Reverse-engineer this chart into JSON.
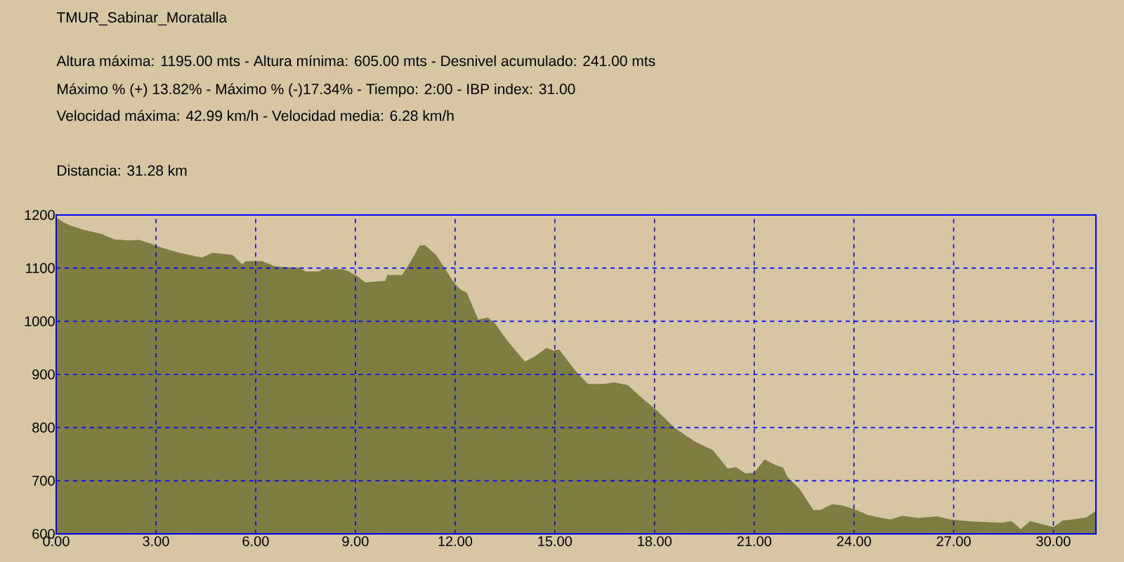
{
  "chart_data": {
    "type": "area",
    "title": "TMUR_Sabinar_Moratalla",
    "annotations": [
      "Altura máxima: 1195.00 mts - Altura mínima: 605.00 mts - Desnivel acumulado: 241.00 mts",
      "Máximo % (+) 13.82%  -  Máximo % (-)17.34%  -  Tiempo: 2:00  -   IBP index: 31.00",
      "Velocidad máxima: 42.99 km/h - Velocidad media: 6.28 km/h",
      "Distancia: 31.28 km"
    ],
    "x": [
      0,
      0.2,
      0.4,
      0.83,
      1.33,
      1.75,
      2.18,
      2.5,
      2.8,
      3.2,
      3.7,
      4.2,
      4.4,
      4.7,
      5.3,
      5.6,
      5.7,
      6.2,
      6.6,
      7.3,
      7.5,
      7.9,
      8.0,
      8.6,
      8.8,
      9.1,
      9.3,
      9.9,
      9.96,
      10.4,
      10.6,
      10.94,
      11.1,
      11.44,
      11.93,
      12.14,
      12.35,
      12.7,
      12.99,
      13.2,
      13.55,
      14.1,
      14.4,
      14.75,
      14.96,
      15.13,
      15.66,
      16.0,
      16.5,
      16.8,
      17.2,
      17.63,
      18.06,
      18.6,
      19.2,
      19.75,
      20.2,
      20.45,
      20.73,
      21.0,
      21.31,
      21.66,
      21.87,
      22.0,
      22.36,
      22.78,
      22.99,
      23.34,
      23.62,
      24.0,
      24.4,
      24.67,
      25.1,
      25.45,
      25.94,
      26.5,
      26.9,
      27.6,
      28.46,
      28.74,
      29.02,
      29.3,
      30.0,
      30.28,
      30.7,
      30.99,
      31.27
    ],
    "series": [
      {
        "color": "#807d43",
        "values": [
          1195,
          1187,
          1181,
          1172,
          1165,
          1154,
          1152,
          1153,
          1147,
          1138,
          1129,
          1122,
          1120,
          1129,
          1125,
          1107,
          1113,
          1113,
          1103,
          1101,
          1094,
          1094,
          1098,
          1098,
          1094,
          1083,
          1073,
          1076,
          1087,
          1087,
          1106,
          1143,
          1143,
          1124,
          1076,
          1061,
          1054,
          1003,
          1007,
          996,
          965,
          924,
          934,
          950,
          945,
          947,
          904,
          882,
          882,
          885,
          880,
          855,
          833,
          800,
          774,
          758,
          723,
          726,
          714,
          715,
          740,
          729,
          725,
          707,
          685,
          645,
          645,
          656,
          654,
          647,
          636,
          632,
          627,
          634,
          630,
          633,
          627,
          623,
          621,
          624,
          609,
          624,
          613,
          625,
          628,
          631,
          643
        ]
      }
    ],
    "xlim": [
      0,
      31.28
    ],
    "ylim": [
      600,
      1200
    ],
    "xticks": [
      {
        "value": 0,
        "label": "0.00"
      },
      {
        "value": 3,
        "label": "3.00"
      },
      {
        "value": 6,
        "label": "6.00"
      },
      {
        "value": 9,
        "label": "9.00"
      },
      {
        "value": 12,
        "label": "12.00"
      },
      {
        "value": 15,
        "label": "15.00"
      },
      {
        "value": 18,
        "label": "18.00"
      },
      {
        "value": 21,
        "label": "21.00"
      },
      {
        "value": 24,
        "label": "24.00"
      },
      {
        "value": 27,
        "label": "27.00"
      },
      {
        "value": 30,
        "label": "30.00"
      }
    ],
    "yticks": [
      600,
      700,
      800,
      900,
      1000,
      1100,
      1200
    ],
    "grid": true
  }
}
